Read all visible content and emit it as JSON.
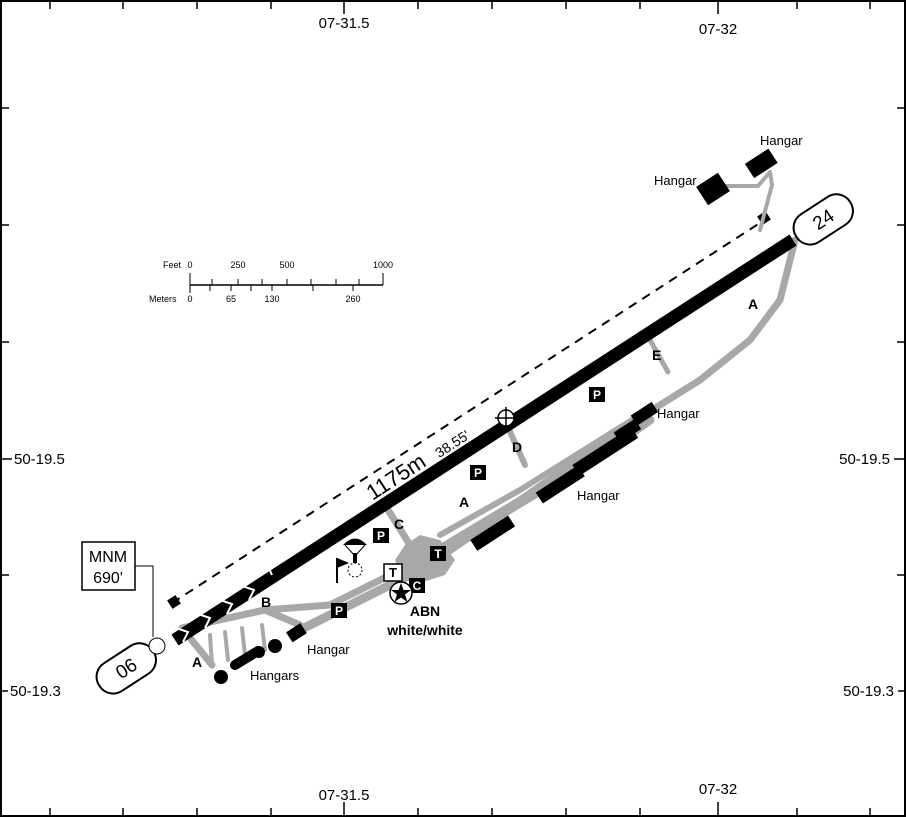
{
  "coordinates": {
    "top_left": "07-31.5",
    "top_right": "07-32",
    "bottom_left": "07-31.5",
    "bottom_right": "07-32",
    "left_upper": "50-19.5",
    "left_lower": "50-19.3",
    "right_upper": "50-19.5",
    "right_lower": "50-19.3"
  },
  "runway": {
    "end_low": "06",
    "end_high": "24",
    "length": "1175m",
    "heading": "38.55'"
  },
  "minimums": {
    "line1": "MNM",
    "line2": "690'"
  },
  "scale": {
    "feet_label": "Feet",
    "meters_label": "Meters",
    "feet_ticks": [
      "0",
      "250",
      "500",
      "1000"
    ],
    "meter_ticks": [
      "0",
      "65",
      "130",
      "260"
    ]
  },
  "taxiways": {
    "a_west": "A",
    "a_mid": "A",
    "a_east": "A",
    "b": "B",
    "c": "C",
    "d": "D",
    "e": "E"
  },
  "labels": {
    "hangar_ne_top": "Hangar",
    "hangar_ne_left": "Hangar",
    "hangar_mid_right": "Hangar",
    "hangar_mid": "Hangar",
    "hangar_west": "Hangar",
    "hangars_sw": "Hangars",
    "abn": "ABN",
    "abn_color": "white/white"
  },
  "symbols": {
    "parking": "P",
    "terminal": "T",
    "tower_box": "T",
    "customs": "C"
  },
  "colors": {
    "runway": "#000000",
    "taxiway": "#a8a8a8"
  }
}
